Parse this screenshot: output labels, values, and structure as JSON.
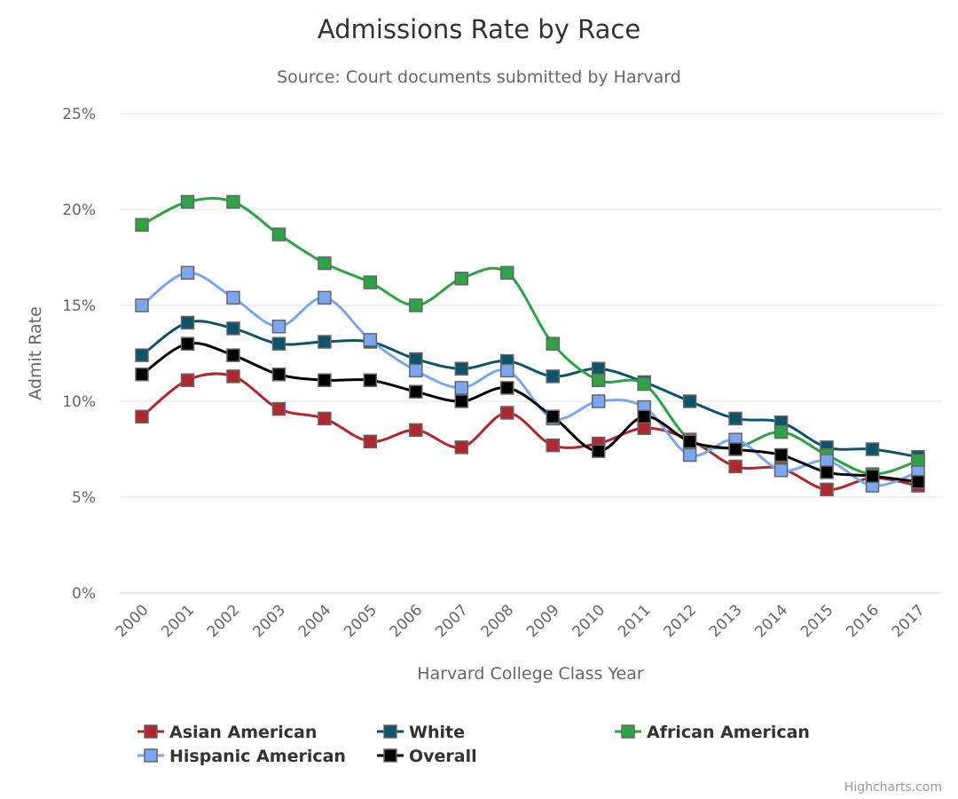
{
  "chart_data": {
    "type": "line",
    "title": "Admissions Rate by Race",
    "subtitle": "Source: Court documents submitted by Harvard",
    "xlabel": "Harvard College Class Year",
    "ylabel": "Admit Rate",
    "ylim": [
      0,
      25
    ],
    "yticks": [
      0,
      5,
      10,
      15,
      20,
      25
    ],
    "ytick_labels": [
      "0%",
      "5%",
      "10%",
      "15%",
      "20%",
      "25%"
    ],
    "grid": true,
    "legend_placement": "bottom",
    "categories": [
      "2000",
      "2001",
      "2002",
      "2003",
      "2004",
      "2005",
      "2006",
      "2007",
      "2008",
      "2009",
      "2010",
      "2011",
      "2012",
      "2013",
      "2014",
      "2015",
      "2016",
      "2017"
    ],
    "series": [
      {
        "name": "Asian American",
        "color": "#b0282e",
        "values": [
          9.2,
          11.1,
          11.3,
          9.6,
          9.1,
          7.9,
          8.5,
          7.6,
          9.4,
          7.7,
          7.8,
          8.6,
          8.0,
          6.6,
          6.5,
          5.4,
          6.0,
          5.6
        ]
      },
      {
        "name": "White",
        "color": "#0d5369",
        "values": [
          12.4,
          14.1,
          13.8,
          13.0,
          13.1,
          13.1,
          12.2,
          11.7,
          12.1,
          11.3,
          11.7,
          11.0,
          10.0,
          9.1,
          8.9,
          7.6,
          7.5,
          7.1
        ]
      },
      {
        "name": "African American",
        "color": "#2ca444",
        "values": [
          19.2,
          20.4,
          20.4,
          18.7,
          17.2,
          16.2,
          15.0,
          16.4,
          16.7,
          13.0,
          11.1,
          10.9,
          8.0,
          7.6,
          8.4,
          7.2,
          6.2,
          6.9
        ]
      },
      {
        "name": "Hispanic American",
        "color": "#7aa6f2",
        "values": [
          15.0,
          16.7,
          15.4,
          13.9,
          15.4,
          13.2,
          11.6,
          10.7,
          11.6,
          9.1,
          10.0,
          9.7,
          7.2,
          8.0,
          6.4,
          6.9,
          5.6,
          6.3
        ]
      },
      {
        "name": "Overall",
        "color": "#000000",
        "values": [
          11.4,
          13.0,
          12.4,
          11.4,
          11.1,
          11.1,
          10.5,
          10.0,
          10.7,
          9.2,
          7.4,
          9.2,
          7.9,
          7.5,
          7.2,
          6.3,
          6.1,
          5.8
        ]
      }
    ]
  },
  "credits": "Highcharts.com"
}
